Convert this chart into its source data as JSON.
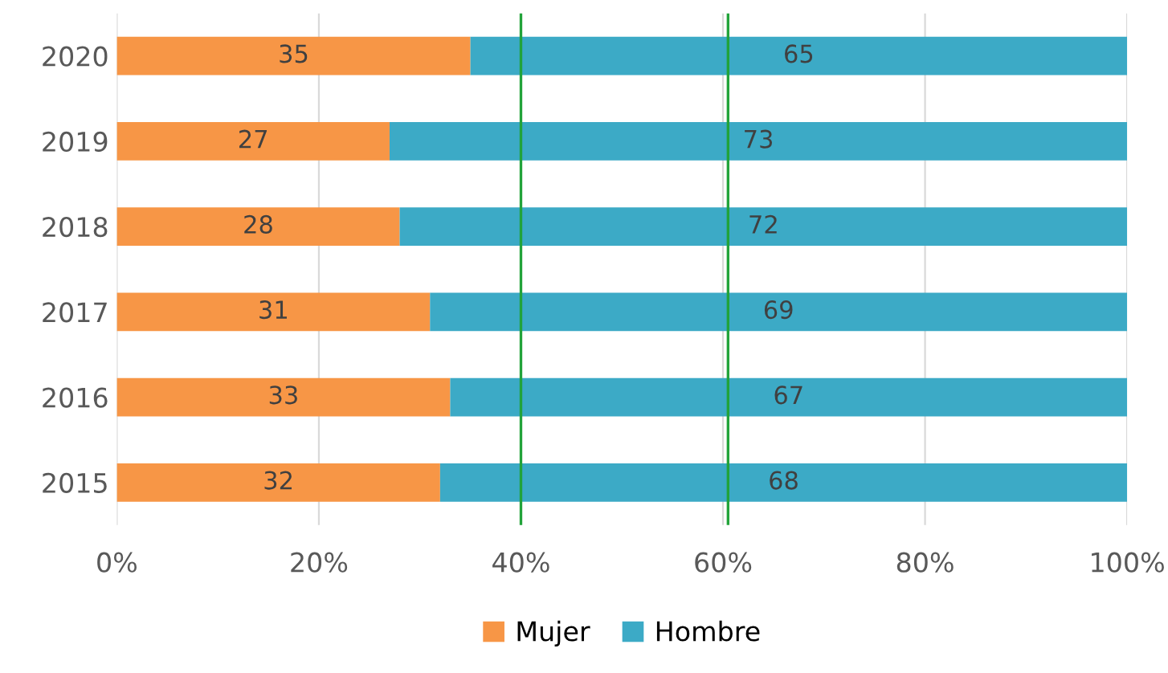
{
  "chart_data": {
    "type": "bar",
    "orientation": "horizontal",
    "stacked": true,
    "categories": [
      "2020",
      "2019",
      "2018",
      "2017",
      "2016",
      "2015"
    ],
    "series": [
      {
        "name": "Mujer",
        "color": "#f79646",
        "values": [
          35,
          27,
          28,
          31,
          33,
          32
        ]
      },
      {
        "name": "Hombre",
        "color": "#3caac6",
        "values": [
          65,
          73,
          72,
          69,
          67,
          68
        ]
      }
    ],
    "xlim": [
      0,
      100
    ],
    "xticks": [
      {
        "value": 0,
        "label": "0%"
      },
      {
        "value": 20,
        "label": "20%"
      },
      {
        "value": 40,
        "label": "40%"
      },
      {
        "value": 60,
        "label": "60%"
      },
      {
        "value": 80,
        "label": "80%"
      },
      {
        "value": 100,
        "label": "100%"
      }
    ],
    "ref_lines": [
      {
        "axis": "x",
        "value": 40,
        "color": "#22a33a"
      },
      {
        "axis": "x",
        "value": 60.5,
        "color": "#22a33a"
      }
    ],
    "data_labels": true,
    "grid": "x",
    "legend": "bottom"
  }
}
